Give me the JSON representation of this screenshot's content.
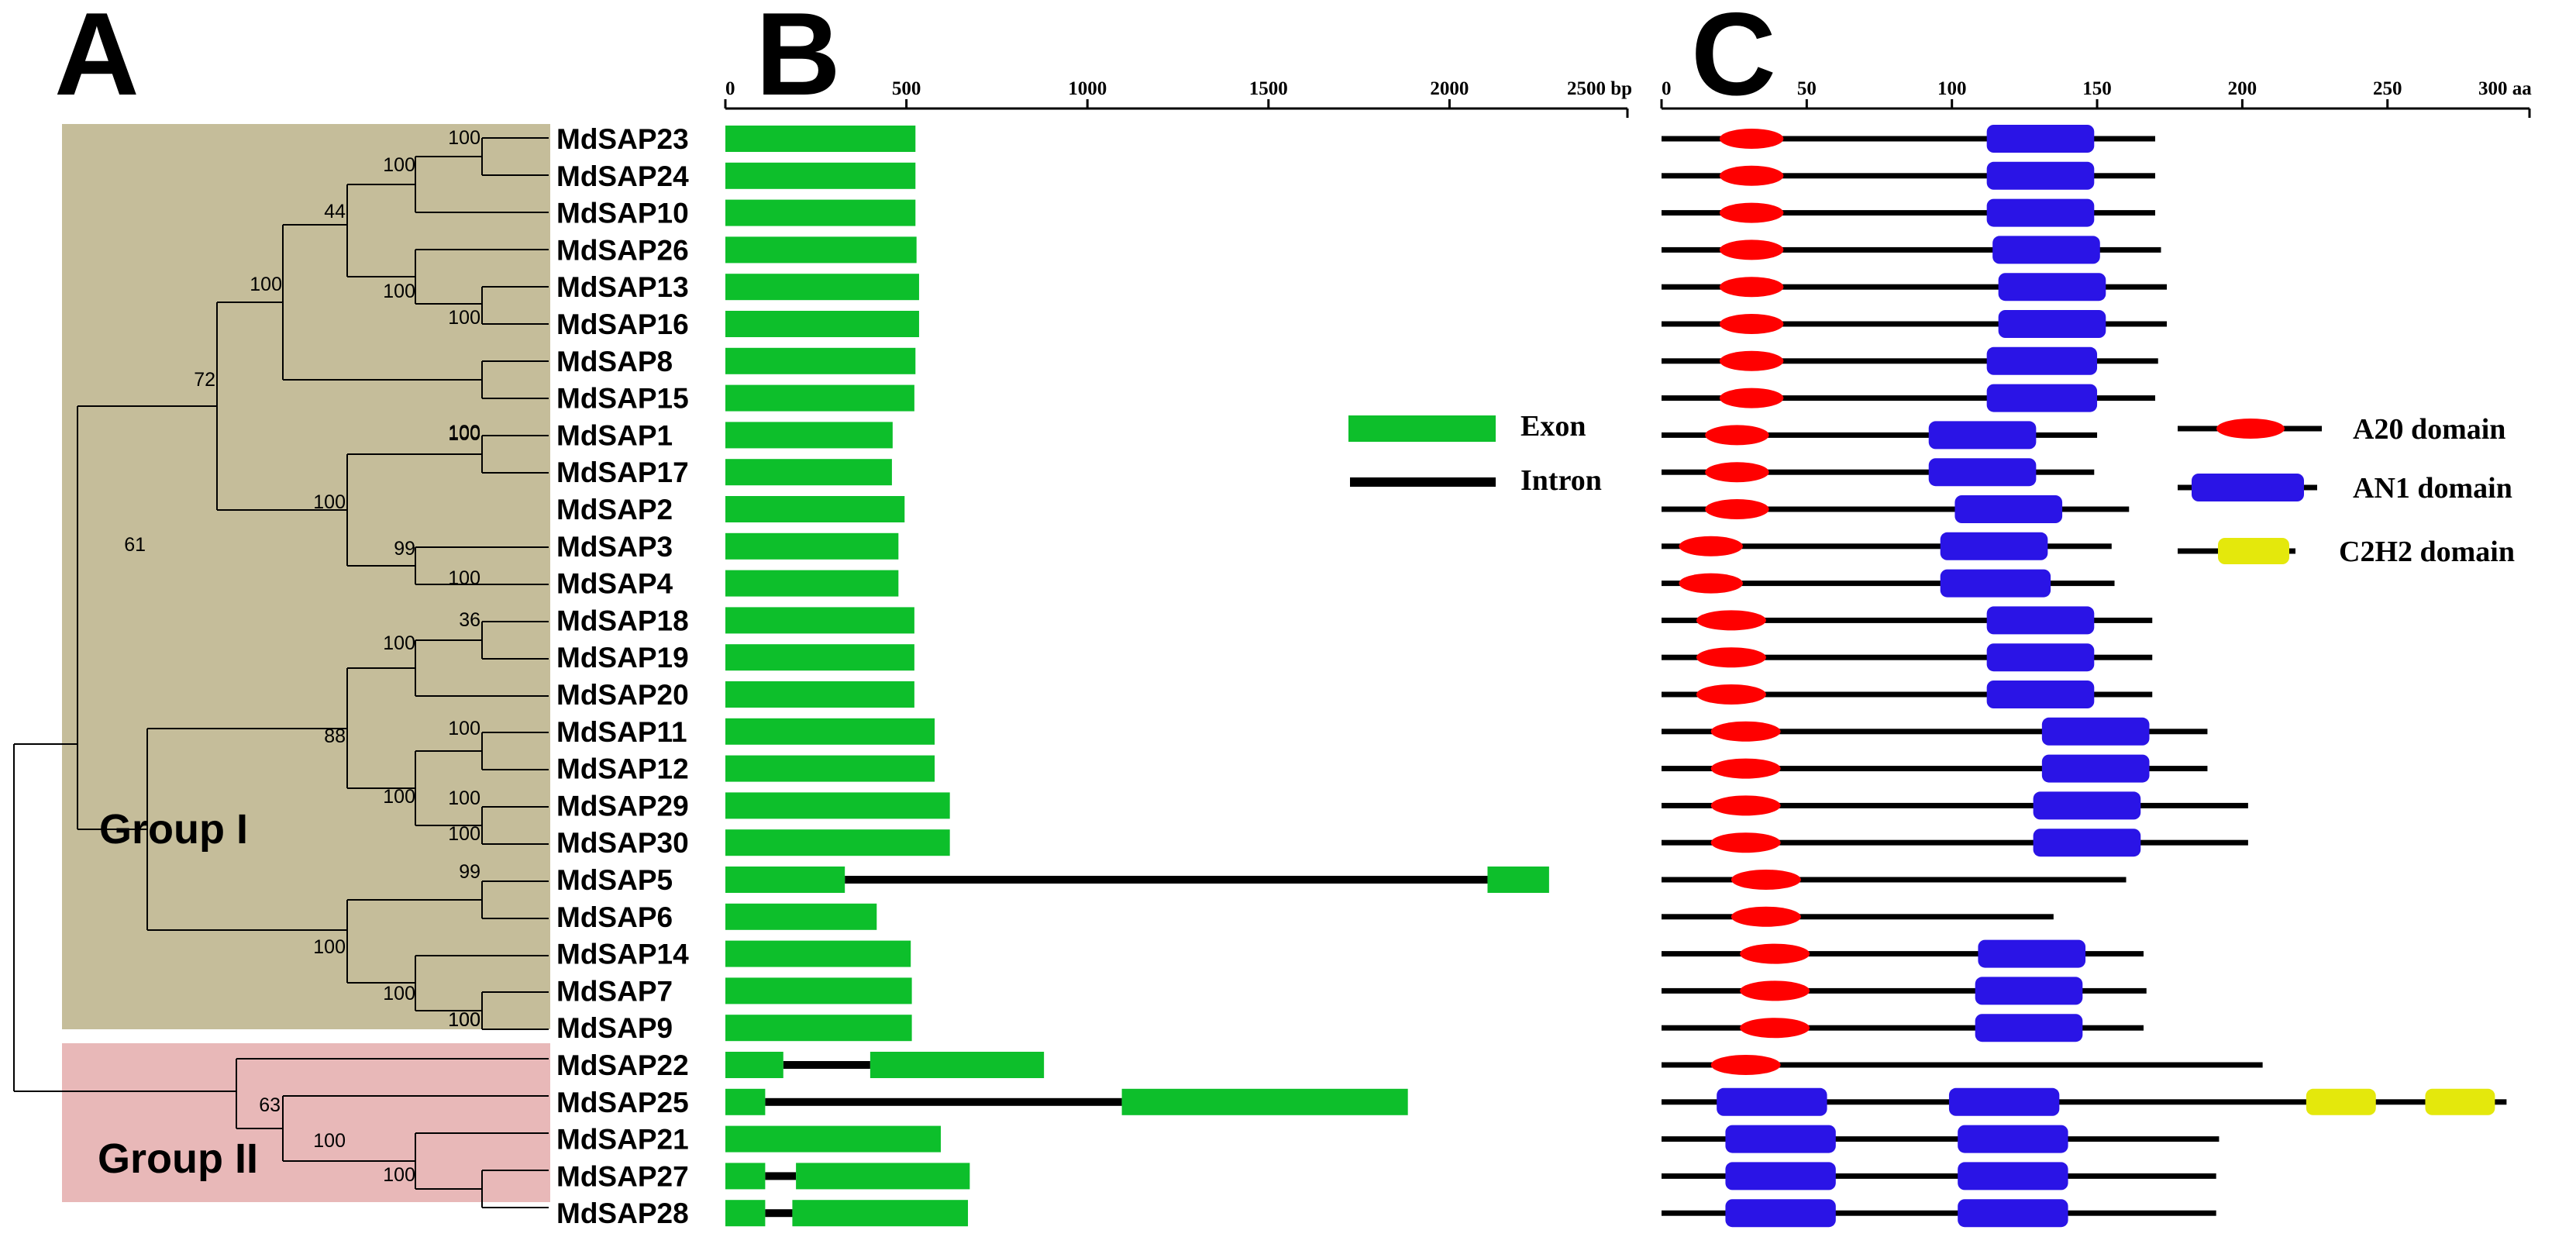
{
  "panels": {
    "a": "A",
    "b": "B",
    "c": "C"
  },
  "groups": {
    "group1": "Group I",
    "group2": "Group II"
  },
  "colors": {
    "group1_bg": "#c5bd9a",
    "group2_bg": "#e8b8b8",
    "exon": "#0dbf2b",
    "intron": "#000000",
    "a20": "#ff0000",
    "an1": "#2a14e6",
    "c2h2": "#e4e80c"
  },
  "axis_b": {
    "ticks": [
      "0",
      "500",
      "1000",
      "1500",
      "2000"
    ],
    "end_label": "2500 bp"
  },
  "axis_c": {
    "ticks": [
      "0",
      "50",
      "100",
      "150",
      "200",
      "250"
    ],
    "end_label": "300 aa"
  },
  "legend_b": {
    "exon": "Exon",
    "intron": "Intron"
  },
  "legend_c": {
    "a20": "A20 domain",
    "an1": "AN1 domain",
    "c2h2": "C2H2 domain"
  },
  "genes": [
    {
      "name": "MdSAP23",
      "exons": [
        [
          0,
          525
        ]
      ],
      "protein_len": 170,
      "domains": [
        {
          "type": "a20",
          "start": 20,
          "end": 42
        },
        {
          "type": "an1",
          "start": 112,
          "end": 149
        }
      ]
    },
    {
      "name": "MdSAP24",
      "exons": [
        [
          0,
          525
        ]
      ],
      "protein_len": 170,
      "domains": [
        {
          "type": "a20",
          "start": 20,
          "end": 42
        },
        {
          "type": "an1",
          "start": 112,
          "end": 149
        }
      ]
    },
    {
      "name": "MdSAP10",
      "exons": [
        [
          0,
          525
        ]
      ],
      "protein_len": 170,
      "domains": [
        {
          "type": "a20",
          "start": 20,
          "end": 42
        },
        {
          "type": "an1",
          "start": 112,
          "end": 149
        }
      ]
    },
    {
      "name": "MdSAP26",
      "exons": [
        [
          0,
          528
        ]
      ],
      "protein_len": 172,
      "domains": [
        {
          "type": "a20",
          "start": 20,
          "end": 42
        },
        {
          "type": "an1",
          "start": 114,
          "end": 151
        }
      ]
    },
    {
      "name": "MdSAP13",
      "exons": [
        [
          0,
          535
        ]
      ],
      "protein_len": 174,
      "domains": [
        {
          "type": "a20",
          "start": 20,
          "end": 42
        },
        {
          "type": "an1",
          "start": 116,
          "end": 153
        }
      ]
    },
    {
      "name": "MdSAP16",
      "exons": [
        [
          0,
          535
        ]
      ],
      "protein_len": 174,
      "domains": [
        {
          "type": "a20",
          "start": 20,
          "end": 42
        },
        {
          "type": "an1",
          "start": 116,
          "end": 153
        }
      ]
    },
    {
      "name": "MdSAP8",
      "exons": [
        [
          0,
          525
        ]
      ],
      "protein_len": 171,
      "domains": [
        {
          "type": "a20",
          "start": 20,
          "end": 42
        },
        {
          "type": "an1",
          "start": 112,
          "end": 150
        }
      ]
    },
    {
      "name": "MdSAP15",
      "exons": [
        [
          0,
          522
        ]
      ],
      "protein_len": 170,
      "domains": [
        {
          "type": "a20",
          "start": 20,
          "end": 42
        },
        {
          "type": "an1",
          "start": 112,
          "end": 150
        }
      ]
    },
    {
      "name": "MdSAP1",
      "exons": [
        [
          0,
          462
        ]
      ],
      "protein_len": 150,
      "domains": [
        {
          "type": "a20",
          "start": 15,
          "end": 37
        },
        {
          "type": "an1",
          "start": 92,
          "end": 129
        }
      ]
    },
    {
      "name": "MdSAP17",
      "exons": [
        [
          0,
          460
        ]
      ],
      "protein_len": 149,
      "domains": [
        {
          "type": "a20",
          "start": 15,
          "end": 37
        },
        {
          "type": "an1",
          "start": 92,
          "end": 129
        }
      ]
    },
    {
      "name": "MdSAP2",
      "exons": [
        [
          0,
          495
        ]
      ],
      "protein_len": 161,
      "domains": [
        {
          "type": "a20",
          "start": 15,
          "end": 37
        },
        {
          "type": "an1",
          "start": 101,
          "end": 138
        }
      ]
    },
    {
      "name": "MdSAP3",
      "exons": [
        [
          0,
          478
        ]
      ],
      "protein_len": 155,
      "domains": [
        {
          "type": "a20",
          "start": 6,
          "end": 28
        },
        {
          "type": "an1",
          "start": 96,
          "end": 133
        }
      ]
    },
    {
      "name": "MdSAP4",
      "exons": [
        [
          0,
          478
        ]
      ],
      "protein_len": 156,
      "domains": [
        {
          "type": "a20",
          "start": 6,
          "end": 28
        },
        {
          "type": "an1",
          "start": 96,
          "end": 134
        }
      ]
    },
    {
      "name": "MdSAP18",
      "exons": [
        [
          0,
          522
        ]
      ],
      "protein_len": 169,
      "domains": [
        {
          "type": "a20",
          "start": 12,
          "end": 36
        },
        {
          "type": "an1",
          "start": 112,
          "end": 149
        }
      ]
    },
    {
      "name": "MdSAP19",
      "exons": [
        [
          0,
          522
        ]
      ],
      "protein_len": 169,
      "domains": [
        {
          "type": "a20",
          "start": 12,
          "end": 36
        },
        {
          "type": "an1",
          "start": 112,
          "end": 149
        }
      ]
    },
    {
      "name": "MdSAP20",
      "exons": [
        [
          0,
          522
        ]
      ],
      "protein_len": 169,
      "domains": [
        {
          "type": "a20",
          "start": 12,
          "end": 36
        },
        {
          "type": "an1",
          "start": 112,
          "end": 149
        }
      ]
    },
    {
      "name": "MdSAP11",
      "exons": [
        [
          0,
          578
        ]
      ],
      "protein_len": 188,
      "domains": [
        {
          "type": "a20",
          "start": 17,
          "end": 41
        },
        {
          "type": "an1",
          "start": 131,
          "end": 168
        }
      ]
    },
    {
      "name": "MdSAP12",
      "exons": [
        [
          0,
          578
        ]
      ],
      "protein_len": 188,
      "domains": [
        {
          "type": "a20",
          "start": 17,
          "end": 41
        },
        {
          "type": "an1",
          "start": 131,
          "end": 168
        }
      ]
    },
    {
      "name": "MdSAP29",
      "exons": [
        [
          0,
          620
        ]
      ],
      "protein_len": 202,
      "domains": [
        {
          "type": "a20",
          "start": 17,
          "end": 41
        },
        {
          "type": "an1",
          "start": 128,
          "end": 165
        }
      ]
    },
    {
      "name": "MdSAP30",
      "exons": [
        [
          0,
          620
        ]
      ],
      "protein_len": 202,
      "domains": [
        {
          "type": "a20",
          "start": 17,
          "end": 41
        },
        {
          "type": "an1",
          "start": 128,
          "end": 165
        }
      ]
    },
    {
      "name": "MdSAP5",
      "exons": [
        [
          0,
          330
        ],
        [
          2105,
          2275
        ]
      ],
      "protein_len": 160,
      "domains": [
        {
          "type": "a20",
          "start": 24,
          "end": 48
        }
      ]
    },
    {
      "name": "MdSAP6",
      "exons": [
        [
          0,
          418
        ]
      ],
      "protein_len": 135,
      "domains": [
        {
          "type": "a20",
          "start": 24,
          "end": 48
        }
      ]
    },
    {
      "name": "MdSAP14",
      "exons": [
        [
          0,
          512
        ]
      ],
      "protein_len": 166,
      "domains": [
        {
          "type": "a20",
          "start": 27,
          "end": 51
        },
        {
          "type": "an1",
          "start": 109,
          "end": 146
        }
      ]
    },
    {
      "name": "MdSAP7",
      "exons": [
        [
          0,
          515
        ]
      ],
      "protein_len": 167,
      "domains": [
        {
          "type": "a20",
          "start": 27,
          "end": 51
        },
        {
          "type": "an1",
          "start": 108,
          "end": 145
        }
      ]
    },
    {
      "name": "MdSAP9",
      "exons": [
        [
          0,
          515
        ]
      ],
      "protein_len": 166,
      "domains": [
        {
          "type": "a20",
          "start": 27,
          "end": 51
        },
        {
          "type": "an1",
          "start": 108,
          "end": 145
        }
      ]
    },
    {
      "name": "MdSAP22",
      "exons": [
        [
          0,
          160
        ],
        [
          400,
          880
        ]
      ],
      "protein_len": 207,
      "domains": [
        {
          "type": "a20",
          "start": 17,
          "end": 41
        }
      ]
    },
    {
      "name": "MdSAP25",
      "exons": [
        [
          0,
          110
        ],
        [
          1095,
          1885
        ]
      ],
      "protein_len": 291,
      "domains": [
        {
          "type": "an1",
          "start": 19,
          "end": 57
        },
        {
          "type": "an1",
          "start": 99,
          "end": 137
        },
        {
          "type": "c2h2",
          "start": 222,
          "end": 246
        },
        {
          "type": "c2h2",
          "start": 263,
          "end": 287
        }
      ]
    },
    {
      "name": "MdSAP21",
      "exons": [
        [
          0,
          595
        ]
      ],
      "protein_len": 192,
      "domains": [
        {
          "type": "an1",
          "start": 22,
          "end": 60
        },
        {
          "type": "an1",
          "start": 102,
          "end": 140
        }
      ]
    },
    {
      "name": "MdSAP27",
      "exons": [
        [
          0,
          110
        ],
        [
          195,
          675
        ]
      ],
      "protein_len": 191,
      "domains": [
        {
          "type": "an1",
          "start": 22,
          "end": 60
        },
        {
          "type": "an1",
          "start": 102,
          "end": 140
        }
      ]
    },
    {
      "name": "MdSAP28",
      "exons": [
        [
          0,
          110
        ],
        [
          185,
          670
        ]
      ],
      "protein_len": 191,
      "domains": [
        {
          "type": "an1",
          "start": 22,
          "end": 60
        },
        {
          "type": "an1",
          "start": 102,
          "end": 140
        }
      ]
    }
  ],
  "bootstrap": [
    "100",
    "100",
    "44",
    "100",
    "100",
    "100",
    "72",
    "100",
    "100",
    "100",
    "99",
    "100",
    "61",
    "36",
    "100",
    "100",
    "88",
    "100",
    "100",
    "100",
    "99",
    "100",
    "100",
    "100",
    "100",
    "63",
    "100",
    "100"
  ]
}
